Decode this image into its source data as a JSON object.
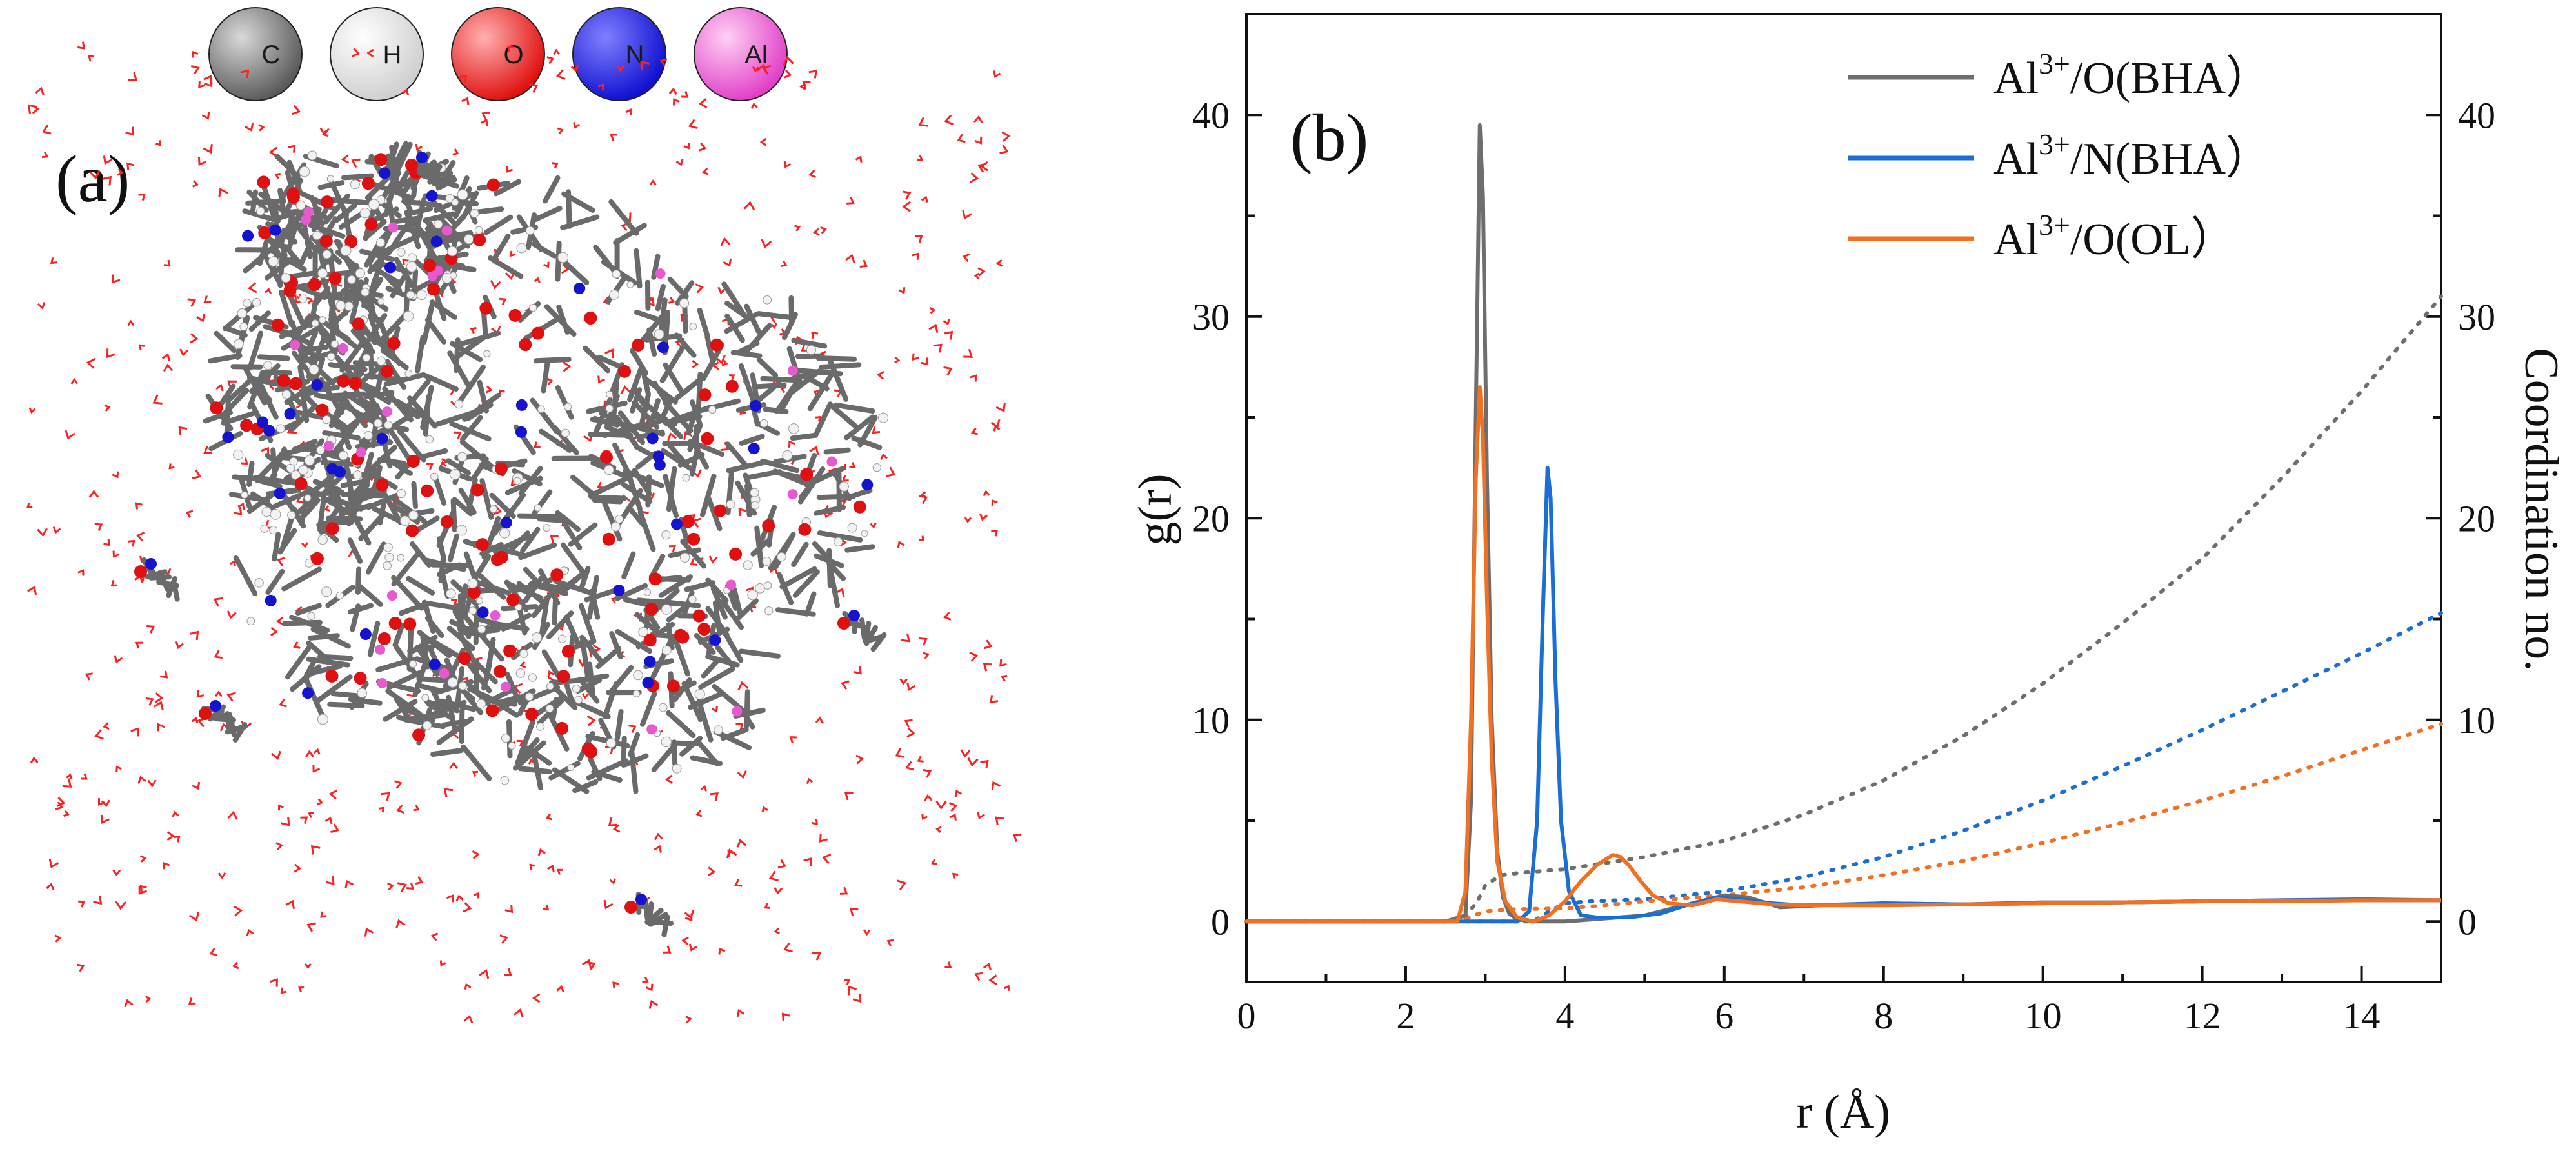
{
  "panel_a": {
    "label": "(a)",
    "atom_legend": [
      {
        "symbol": "C",
        "color": "#5a5a5a",
        "highlight": "#d9d9d9"
      },
      {
        "symbol": "H",
        "color": "#cfcfcf",
        "highlight": "#ffffff"
      },
      {
        "symbol": "O",
        "color": "#e01010",
        "highlight": "#ffb0b0"
      },
      {
        "symbol": "N",
        "color": "#1010d0",
        "highlight": "#8080ff"
      },
      {
        "symbol": "Al",
        "color": "#e040c8",
        "highlight": "#ffd0f4"
      }
    ],
    "water_color": "#ff2020"
  },
  "chart_data": {
    "type": "line",
    "panel_label": "(b)",
    "xlabel": "r (Å)",
    "ylabel": "g(r)",
    "y2label": "Coordination no.",
    "xlim": [
      0,
      15
    ],
    "ylim": [
      -3,
      45
    ],
    "y2lim": [
      -3,
      45
    ],
    "xticks": [
      0,
      2,
      4,
      6,
      8,
      10,
      12,
      14
    ],
    "yticks": [
      0,
      10,
      20,
      30,
      40
    ],
    "y2ticks": [
      0,
      10,
      20,
      30,
      40
    ],
    "legend_position": "top-right",
    "series": [
      {
        "name_main": "Al",
        "name_sup": "3+",
        "name_rest": "/O(BHA）",
        "color": "#6e6e6e",
        "gr_x": [
          0,
          2.5,
          2.75,
          2.82,
          2.88,
          2.93,
          2.97,
          3.02,
          3.08,
          3.15,
          3.22,
          3.3,
          3.4,
          3.6,
          4.0,
          5.0,
          5.5,
          6.0,
          6.3,
          6.7,
          7.2,
          8,
          9,
          10,
          11,
          12,
          13,
          14,
          15
        ],
        "gr_y": [
          0,
          0,
          0.3,
          6,
          25,
          39.5,
          36,
          22,
          10,
          3.5,
          1.2,
          0.4,
          0.1,
          0,
          0,
          0.3,
          0.8,
          1.3,
          1.2,
          0.7,
          0.8,
          0.9,
          0.85,
          0.95,
          0.95,
          1.0,
          1.05,
          1.1,
          1.05
        ],
        "cn_x": [
          0,
          2.7,
          2.9,
          3.0,
          3.2,
          3.4,
          4,
          5,
          6,
          7,
          8,
          9,
          10,
          11,
          12,
          13,
          14,
          15
        ],
        "cn_y": [
          0,
          0,
          1.0,
          1.8,
          2.3,
          2.4,
          2.6,
          3.2,
          4.0,
          5.3,
          7.0,
          9.2,
          11.8,
          14.8,
          18.0,
          22.0,
          26.3,
          31.0
        ]
      },
      {
        "name_main": "Al",
        "name_sup": "3+",
        "name_rest": "/N(BHA）",
        "color": "#1a6fd6",
        "gr_x": [
          0,
          3.4,
          3.55,
          3.65,
          3.72,
          3.78,
          3.82,
          3.88,
          3.95,
          4.05,
          4.2,
          4.4,
          4.8,
          5.2,
          5.6,
          5.9,
          6.2,
          6.6,
          7,
          8,
          9,
          10,
          11,
          12,
          13,
          14,
          15
        ],
        "gr_y": [
          0,
          0,
          0.5,
          5,
          15,
          22.5,
          21,
          12,
          5,
          1.5,
          0.3,
          0.2,
          0.2,
          0.4,
          0.9,
          1.2,
          1.1,
          0.9,
          0.8,
          0.9,
          0.85,
          0.9,
          0.95,
          1.0,
          1.05,
          1.05,
          1.05
        ],
        "cn_x": [
          0,
          3.6,
          3.8,
          4.0,
          4.3,
          5,
          6,
          7,
          8,
          9,
          10,
          11,
          12,
          13,
          14,
          15
        ],
        "cn_y": [
          0,
          0,
          0.5,
          0.9,
          1.0,
          1.1,
          1.5,
          2.2,
          3.2,
          4.5,
          6.0,
          7.7,
          9.5,
          11.4,
          13.3,
          15.3
        ]
      },
      {
        "name_main": "Al",
        "name_sup": "3+",
        "name_rest": "/O(OL）",
        "color": "#f27020",
        "gr_x": [
          0,
          2.65,
          2.75,
          2.82,
          2.88,
          2.93,
          2.97,
          3.02,
          3.08,
          3.15,
          3.25,
          3.4,
          3.6,
          3.8,
          4.0,
          4.2,
          4.4,
          4.6,
          4.7,
          4.8,
          4.95,
          5.1,
          5.3,
          5.6,
          5.9,
          6.2,
          6.6,
          7,
          8,
          9,
          10,
          11,
          12,
          13,
          14,
          15
        ],
        "gr_y": [
          0,
          0,
          1.5,
          10,
          22,
          26.5,
          24,
          16,
          8,
          3,
          1,
          0.2,
          0,
          0.3,
          1.0,
          2.0,
          2.8,
          3.3,
          3.2,
          2.8,
          2.0,
          1.3,
          0.9,
          0.8,
          1.1,
          1.0,
          0.85,
          0.8,
          0.8,
          0.85,
          0.9,
          0.95,
          1.0,
          1.0,
          1.05,
          1.05
        ],
        "cn_x": [
          0,
          2.7,
          2.85,
          3.0,
          3.3,
          4.0,
          4.5,
          5.0,
          6,
          7,
          8,
          9,
          10,
          11,
          12,
          13,
          14,
          15
        ],
        "cn_y": [
          0,
          0,
          0.3,
          0.5,
          0.6,
          0.65,
          0.8,
          1.0,
          1.3,
          1.7,
          2.3,
          3.0,
          3.9,
          4.9,
          6.0,
          7.2,
          8.5,
          9.8
        ]
      }
    ]
  }
}
